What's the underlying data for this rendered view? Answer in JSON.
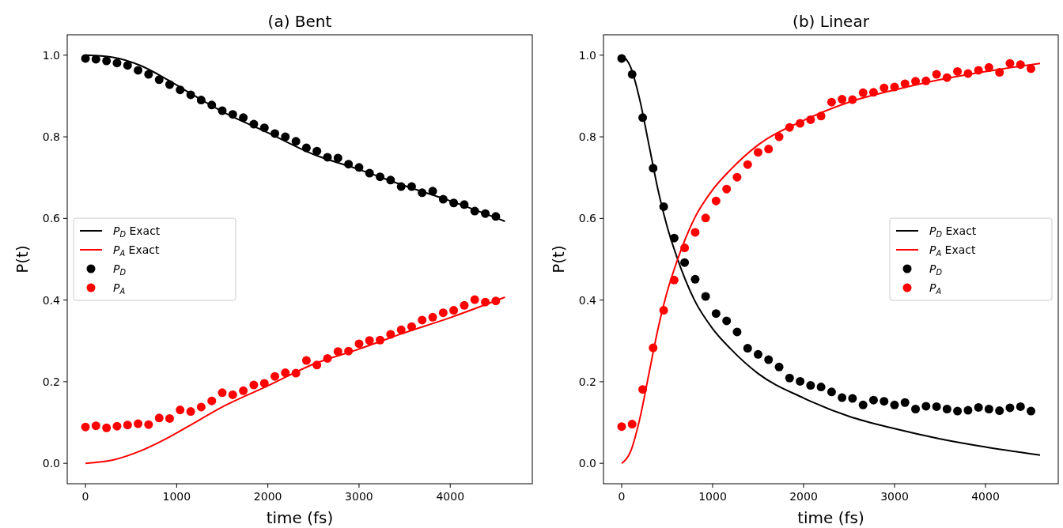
{
  "chart_data": [
    {
      "type": "line",
      "title": "(a) Bent",
      "xlabel": "time (fs)",
      "ylabel": "P(t)",
      "xlim": [
        -200,
        4900
      ],
      "ylim": [
        -0.05,
        1.05
      ],
      "xticks": [
        0,
        1000,
        2000,
        3000,
        4000
      ],
      "yticks": [
        {
          "value": 0,
          "label": "0.0"
        },
        {
          "value": 0.2,
          "label": "0.2"
        },
        {
          "value": 0.4,
          "label": "0.4"
        },
        {
          "value": 0.6,
          "label": "0.6"
        },
        {
          "value": 0.8,
          "label": "0.8"
        },
        {
          "value": 1,
          "label": "1.0"
        }
      ],
      "legend": "center left",
      "grid": false,
      "series": [
        {
          "name": "P$_{D}$ Exact",
          "color": "#000000",
          "x": [
            0,
            300,
            600,
            900,
            1200,
            1500,
            2000,
            2500,
            3000,
            3500,
            4000,
            4600
          ],
          "values": [
            1.0,
            0.995,
            0.975,
            0.94,
            0.9,
            0.862,
            0.81,
            0.757,
            0.72,
            0.68,
            0.643,
            0.593
          ]
        },
        {
          "name": "P$_{A}$ Exact",
          "color": "#ff0000",
          "x": [
            0,
            300,
            600,
            900,
            1200,
            1500,
            2000,
            2500,
            3000,
            3500,
            4000,
            4600
          ],
          "values": [
            0.0,
            0.008,
            0.03,
            0.062,
            0.1,
            0.138,
            0.19,
            0.243,
            0.28,
            0.32,
            0.357,
            0.407
          ]
        },
        {
          "name": "P$_{D}$",
          "type": "scatter",
          "marker": "circle",
          "color": "#000000",
          "x": [
            0,
            115,
            231,
            346,
            462,
            577,
            692,
            808,
            923,
            1038,
            1154,
            1269,
            1385,
            1500,
            1615,
            1731,
            1846,
            1962,
            2077,
            2192,
            2308,
            2423,
            2538,
            2654,
            2769,
            2885,
            3000,
            3115,
            3231,
            3346,
            3462,
            3577,
            3692,
            3808,
            3923,
            4038,
            4154,
            4269,
            4385,
            4500
          ],
          "values": [
            0.992,
            0.99,
            0.986,
            0.981,
            0.975,
            0.963,
            0.953,
            0.94,
            0.928,
            0.915,
            0.903,
            0.89,
            0.878,
            0.864,
            0.855,
            0.847,
            0.831,
            0.822,
            0.808,
            0.8,
            0.789,
            0.773,
            0.765,
            0.75,
            0.748,
            0.733,
            0.725,
            0.711,
            0.702,
            0.694,
            0.678,
            0.678,
            0.663,
            0.667,
            0.647,
            0.638,
            0.634,
            0.618,
            0.612,
            0.605
          ]
        },
        {
          "name": "P$_{A}$",
          "type": "scatter",
          "marker": "circle",
          "color": "#ff0000",
          "x": [
            0,
            115,
            231,
            346,
            462,
            577,
            692,
            808,
            923,
            1038,
            1154,
            1269,
            1385,
            1500,
            1615,
            1731,
            1846,
            1962,
            2077,
            2192,
            2308,
            2423,
            2538,
            2654,
            2769,
            2885,
            3000,
            3115,
            3231,
            3346,
            3462,
            3577,
            3692,
            3808,
            3923,
            4038,
            4154,
            4269,
            4385,
            4500
          ],
          "values": [
            0.089,
            0.092,
            0.087,
            0.091,
            0.094,
            0.097,
            0.095,
            0.111,
            0.11,
            0.131,
            0.127,
            0.138,
            0.153,
            0.173,
            0.168,
            0.178,
            0.192,
            0.196,
            0.213,
            0.222,
            0.221,
            0.252,
            0.241,
            0.257,
            0.274,
            0.275,
            0.293,
            0.301,
            0.302,
            0.316,
            0.327,
            0.335,
            0.351,
            0.358,
            0.369,
            0.375,
            0.387,
            0.401,
            0.395,
            0.398
          ]
        }
      ]
    },
    {
      "type": "line",
      "title": "(b) Linear",
      "xlabel": "time (fs)",
      "ylabel": "P(t)",
      "xlim": [
        -200,
        4800
      ],
      "ylim": [
        -0.05,
        1.05
      ],
      "xticks": [
        0,
        1000,
        2000,
        3000,
        4000
      ],
      "yticks": [
        {
          "value": 0,
          "label": "0.0"
        },
        {
          "value": 0.2,
          "label": "0.2"
        },
        {
          "value": 0.4,
          "label": "0.4"
        },
        {
          "value": 0.6,
          "label": "0.6"
        },
        {
          "value": 0.8,
          "label": "0.8"
        },
        {
          "value": 1,
          "label": "1.0"
        }
      ],
      "legend": "center right",
      "grid": false,
      "series": [
        {
          "name": "P$_{D}$ Exact",
          "color": "#000000",
          "x": [
            0,
            100,
            200,
            300,
            400,
            500,
            600,
            700,
            800,
            1000,
            1200,
            1500,
            2000,
            2500,
            3000,
            3500,
            4000,
            4600
          ],
          "values": [
            1.0,
            0.97,
            0.89,
            0.78,
            0.67,
            0.58,
            0.51,
            0.45,
            0.4,
            0.33,
            0.28,
            0.22,
            0.16,
            0.115,
            0.085,
            0.06,
            0.04,
            0.02
          ]
        },
        {
          "name": "P$_{A}$ Exact",
          "color": "#ff0000",
          "x": [
            0,
            100,
            200,
            300,
            400,
            500,
            600,
            700,
            800,
            1000,
            1200,
            1500,
            2000,
            2500,
            3000,
            3500,
            4000,
            4600
          ],
          "values": [
            0.0,
            0.03,
            0.11,
            0.22,
            0.33,
            0.42,
            0.49,
            0.55,
            0.6,
            0.67,
            0.72,
            0.78,
            0.84,
            0.885,
            0.915,
            0.94,
            0.96,
            0.98
          ]
        },
        {
          "name": "P$_{D}$",
          "type": "scatter",
          "marker": "circle",
          "color": "#000000",
          "x": [
            0,
            115,
            231,
            346,
            462,
            577,
            692,
            808,
            923,
            1038,
            1154,
            1269,
            1385,
            1500,
            1615,
            1731,
            1846,
            1962,
            2077,
            2192,
            2308,
            2423,
            2538,
            2654,
            2769,
            2885,
            3000,
            3115,
            3231,
            3346,
            3462,
            3577,
            3692,
            3808,
            3923,
            4038,
            4154,
            4269,
            4385,
            4500
          ],
          "values": [
            0.992,
            0.953,
            0.847,
            0.723,
            0.629,
            0.552,
            0.492,
            0.451,
            0.409,
            0.367,
            0.349,
            0.322,
            0.282,
            0.267,
            0.254,
            0.236,
            0.209,
            0.201,
            0.191,
            0.187,
            0.175,
            0.161,
            0.159,
            0.143,
            0.155,
            0.152,
            0.143,
            0.149,
            0.133,
            0.14,
            0.139,
            0.133,
            0.128,
            0.13,
            0.137,
            0.133,
            0.129,
            0.136,
            0.139,
            0.128
          ]
        },
        {
          "name": "P$_{A}$",
          "type": "scatter",
          "marker": "circle",
          "color": "#ff0000",
          "x": [
            0,
            115,
            231,
            346,
            462,
            577,
            692,
            808,
            923,
            1038,
            1154,
            1269,
            1385,
            1500,
            1615,
            1731,
            1846,
            1962,
            2077,
            2192,
            2308,
            2423,
            2538,
            2654,
            2769,
            2885,
            3000,
            3115,
            3231,
            3346,
            3462,
            3577,
            3692,
            3808,
            3923,
            4038,
            4154,
            4269,
            4385,
            4500
          ],
          "values": [
            0.09,
            0.096,
            0.181,
            0.283,
            0.375,
            0.449,
            0.528,
            0.566,
            0.601,
            0.643,
            0.672,
            0.701,
            0.732,
            0.762,
            0.77,
            0.8,
            0.823,
            0.833,
            0.842,
            0.851,
            0.885,
            0.892,
            0.891,
            0.908,
            0.909,
            0.92,
            0.922,
            0.93,
            0.936,
            0.937,
            0.953,
            0.945,
            0.96,
            0.955,
            0.963,
            0.97,
            0.958,
            0.98,
            0.977,
            0.967
          ]
        }
      ]
    }
  ]
}
